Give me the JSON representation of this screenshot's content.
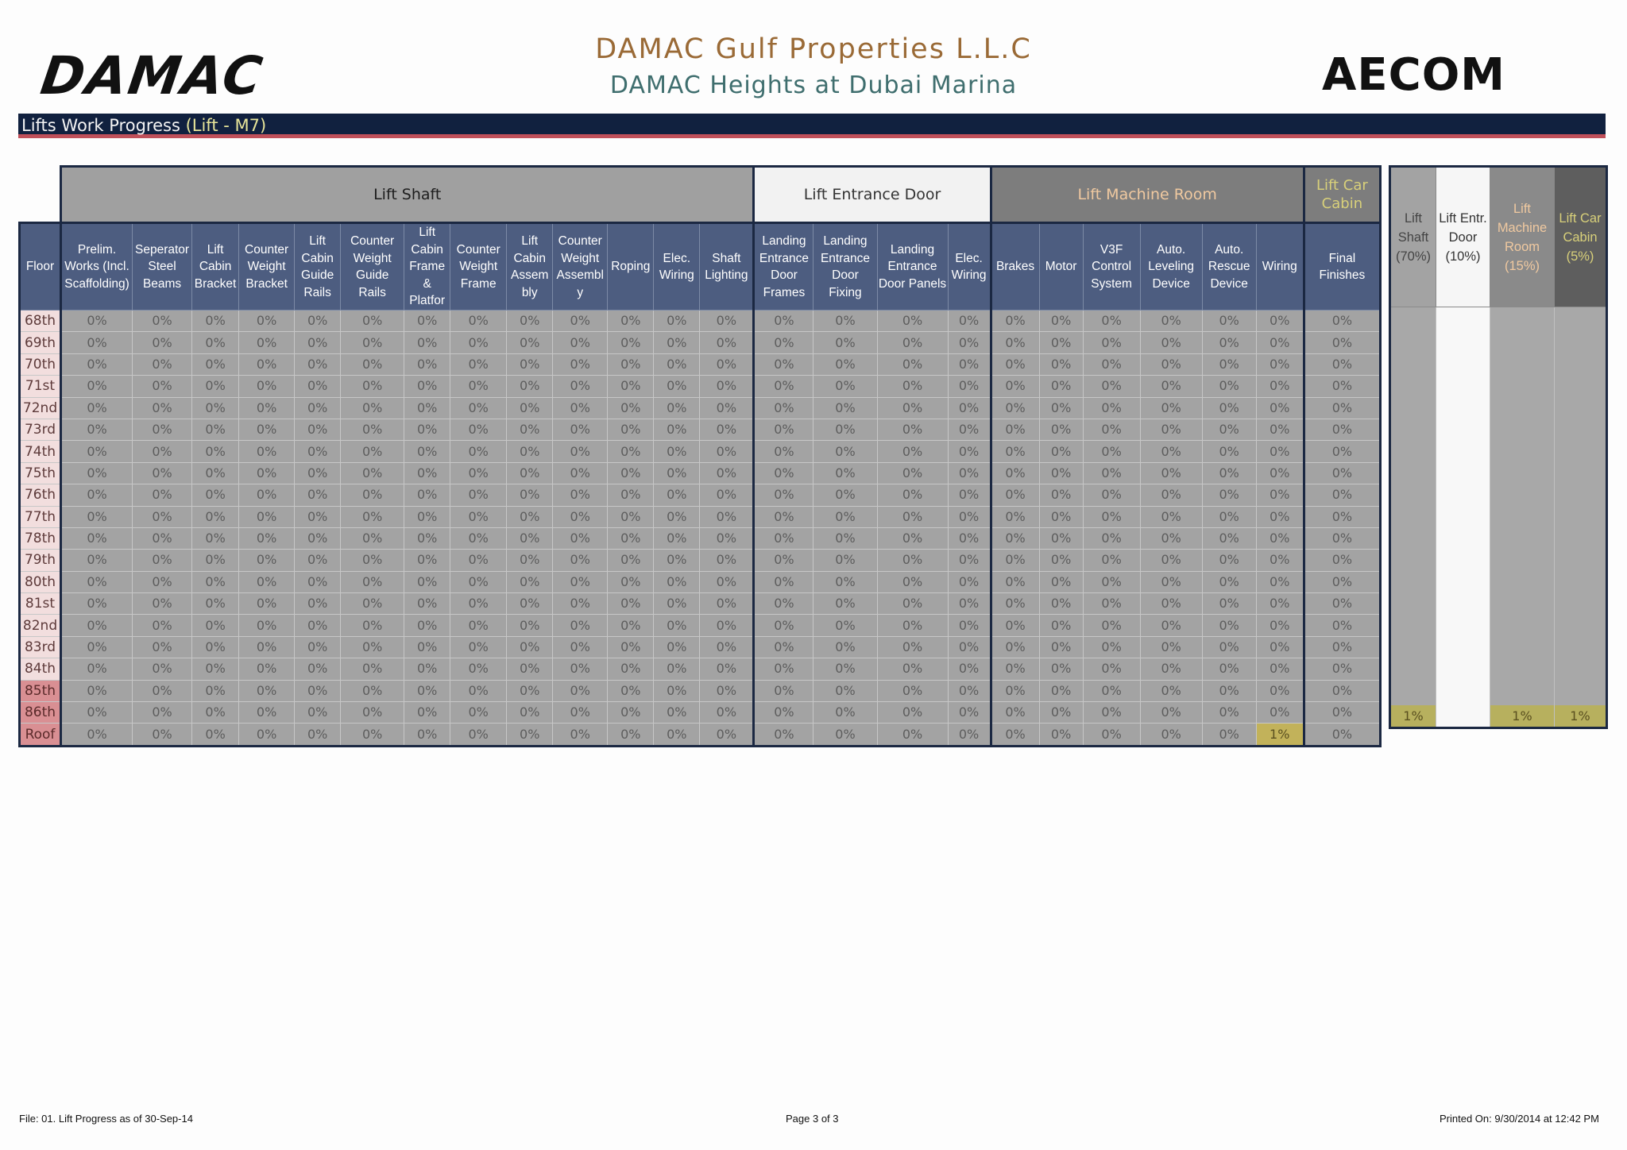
{
  "header": {
    "left_logo": "DAMAC",
    "right_logo": "AECOM",
    "company": "DAMAC Gulf Properties L.L.C",
    "project": "DAMAC Heights at Dubai Marina"
  },
  "section_bar": {
    "title": "Lifts Work Progress",
    "subtitle": "(Lift - M7)"
  },
  "groups": {
    "shaft": "Lift Shaft",
    "door": "Lift Entrance Door",
    "machine": "Lift Machine Room",
    "car": "Lift Car Cabin"
  },
  "columns": {
    "floor": "Floor",
    "list": [
      "Prelim. Works (Incl. Scaffolding)",
      "Seperator Steel Beams",
      "Lift Cabin Bracket",
      "Counter Weight Bracket",
      "Lift Cabin Guide Rails",
      "Counter Weight Guide Rails",
      "Lift Cabin Frame & Platfor",
      "Counter Weight Frame",
      "Lift Cabin Assem bly",
      "Counter Weight Assembl y",
      "Roping",
      "Elec. Wiring",
      "Shaft Lighting",
      "Landing Entrance Door Frames",
      "Landing Entrance Door Fixing",
      "Landing Entrance Door Panels",
      "Elec. Wiring",
      "Brakes",
      "Motor",
      "V3F Control System",
      "Auto. Leveling Device",
      "Auto. Rescue Device",
      "Wiring",
      "Final Finishes"
    ]
  },
  "summary_columns": [
    {
      "label": "Lift Shaft (70%)"
    },
    {
      "label": "Lift Entr. Door (10%)"
    },
    {
      "label": "Lift Machine Room (15%)"
    },
    {
      "label": "Lift Car Cabin (5%)"
    }
  ],
  "rows": [
    {
      "floor": "68th",
      "values": [
        "0%",
        "0%",
        "0%",
        "0%",
        "0%",
        "0%",
        "0%",
        "0%",
        "0%",
        "0%",
        "0%",
        "0%",
        "0%",
        "0%",
        "0%",
        "0%",
        "0%",
        "0%",
        "0%",
        "0%",
        "0%",
        "0%",
        "0%",
        "0%"
      ],
      "summary": [
        "",
        "",
        "",
        ""
      ]
    },
    {
      "floor": "69th",
      "values": [
        "0%",
        "0%",
        "0%",
        "0%",
        "0%",
        "0%",
        "0%",
        "0%",
        "0%",
        "0%",
        "0%",
        "0%",
        "0%",
        "0%",
        "0%",
        "0%",
        "0%",
        "0%",
        "0%",
        "0%",
        "0%",
        "0%",
        "0%",
        "0%"
      ],
      "summary": [
        "",
        "",
        "",
        ""
      ]
    },
    {
      "floor": "70th",
      "values": [
        "0%",
        "0%",
        "0%",
        "0%",
        "0%",
        "0%",
        "0%",
        "0%",
        "0%",
        "0%",
        "0%",
        "0%",
        "0%",
        "0%",
        "0%",
        "0%",
        "0%",
        "0%",
        "0%",
        "0%",
        "0%",
        "0%",
        "0%",
        "0%"
      ],
      "summary": [
        "",
        "",
        "",
        ""
      ]
    },
    {
      "floor": "71st",
      "values": [
        "0%",
        "0%",
        "0%",
        "0%",
        "0%",
        "0%",
        "0%",
        "0%",
        "0%",
        "0%",
        "0%",
        "0%",
        "0%",
        "0%",
        "0%",
        "0%",
        "0%",
        "0%",
        "0%",
        "0%",
        "0%",
        "0%",
        "0%",
        "0%"
      ],
      "summary": [
        "",
        "",
        "",
        ""
      ]
    },
    {
      "floor": "72nd",
      "values": [
        "0%",
        "0%",
        "0%",
        "0%",
        "0%",
        "0%",
        "0%",
        "0%",
        "0%",
        "0%",
        "0%",
        "0%",
        "0%",
        "0%",
        "0%",
        "0%",
        "0%",
        "0%",
        "0%",
        "0%",
        "0%",
        "0%",
        "0%",
        "0%"
      ],
      "summary": [
        "",
        "",
        "",
        ""
      ]
    },
    {
      "floor": "73rd",
      "values": [
        "0%",
        "0%",
        "0%",
        "0%",
        "0%",
        "0%",
        "0%",
        "0%",
        "0%",
        "0%",
        "0%",
        "0%",
        "0%",
        "0%",
        "0%",
        "0%",
        "0%",
        "0%",
        "0%",
        "0%",
        "0%",
        "0%",
        "0%",
        "0%"
      ],
      "summary": [
        "",
        "",
        "",
        ""
      ]
    },
    {
      "floor": "74th",
      "values": [
        "0%",
        "0%",
        "0%",
        "0%",
        "0%",
        "0%",
        "0%",
        "0%",
        "0%",
        "0%",
        "0%",
        "0%",
        "0%",
        "0%",
        "0%",
        "0%",
        "0%",
        "0%",
        "0%",
        "0%",
        "0%",
        "0%",
        "0%",
        "0%"
      ],
      "summary": [
        "",
        "",
        "",
        ""
      ]
    },
    {
      "floor": "75th",
      "values": [
        "0%",
        "0%",
        "0%",
        "0%",
        "0%",
        "0%",
        "0%",
        "0%",
        "0%",
        "0%",
        "0%",
        "0%",
        "0%",
        "0%",
        "0%",
        "0%",
        "0%",
        "0%",
        "0%",
        "0%",
        "0%",
        "0%",
        "0%",
        "0%"
      ],
      "summary": [
        "",
        "",
        "",
        ""
      ]
    },
    {
      "floor": "76th",
      "values": [
        "0%",
        "0%",
        "0%",
        "0%",
        "0%",
        "0%",
        "0%",
        "0%",
        "0%",
        "0%",
        "0%",
        "0%",
        "0%",
        "0%",
        "0%",
        "0%",
        "0%",
        "0%",
        "0%",
        "0%",
        "0%",
        "0%",
        "0%",
        "0%"
      ],
      "summary": [
        "",
        "",
        "",
        ""
      ]
    },
    {
      "floor": "77th",
      "values": [
        "0%",
        "0%",
        "0%",
        "0%",
        "0%",
        "0%",
        "0%",
        "0%",
        "0%",
        "0%",
        "0%",
        "0%",
        "0%",
        "0%",
        "0%",
        "0%",
        "0%",
        "0%",
        "0%",
        "0%",
        "0%",
        "0%",
        "0%",
        "0%"
      ],
      "summary": [
        "",
        "",
        "",
        ""
      ]
    },
    {
      "floor": "78th",
      "values": [
        "0%",
        "0%",
        "0%",
        "0%",
        "0%",
        "0%",
        "0%",
        "0%",
        "0%",
        "0%",
        "0%",
        "0%",
        "0%",
        "0%",
        "0%",
        "0%",
        "0%",
        "0%",
        "0%",
        "0%",
        "0%",
        "0%",
        "0%",
        "0%"
      ],
      "summary": [
        "",
        "",
        "",
        ""
      ]
    },
    {
      "floor": "79th",
      "values": [
        "0%",
        "0%",
        "0%",
        "0%",
        "0%",
        "0%",
        "0%",
        "0%",
        "0%",
        "0%",
        "0%",
        "0%",
        "0%",
        "0%",
        "0%",
        "0%",
        "0%",
        "0%",
        "0%",
        "0%",
        "0%",
        "0%",
        "0%",
        "0%"
      ],
      "summary": [
        "",
        "",
        "",
        ""
      ]
    },
    {
      "floor": "80th",
      "values": [
        "0%",
        "0%",
        "0%",
        "0%",
        "0%",
        "0%",
        "0%",
        "0%",
        "0%",
        "0%",
        "0%",
        "0%",
        "0%",
        "0%",
        "0%",
        "0%",
        "0%",
        "0%",
        "0%",
        "0%",
        "0%",
        "0%",
        "0%",
        "0%"
      ],
      "summary": [
        "",
        "",
        "",
        ""
      ]
    },
    {
      "floor": "81st",
      "values": [
        "0%",
        "0%",
        "0%",
        "0%",
        "0%",
        "0%",
        "0%",
        "0%",
        "0%",
        "0%",
        "0%",
        "0%",
        "0%",
        "0%",
        "0%",
        "0%",
        "0%",
        "0%",
        "0%",
        "0%",
        "0%",
        "0%",
        "0%",
        "0%"
      ],
      "summary": [
        "",
        "",
        "",
        ""
      ]
    },
    {
      "floor": "82nd",
      "values": [
        "0%",
        "0%",
        "0%",
        "0%",
        "0%",
        "0%",
        "0%",
        "0%",
        "0%",
        "0%",
        "0%",
        "0%",
        "0%",
        "0%",
        "0%",
        "0%",
        "0%",
        "0%",
        "0%",
        "0%",
        "0%",
        "0%",
        "0%",
        "0%"
      ],
      "summary": [
        "",
        "",
        "",
        ""
      ]
    },
    {
      "floor": "83rd",
      "values": [
        "0%",
        "0%",
        "0%",
        "0%",
        "0%",
        "0%",
        "0%",
        "0%",
        "0%",
        "0%",
        "0%",
        "0%",
        "0%",
        "0%",
        "0%",
        "0%",
        "0%",
        "0%",
        "0%",
        "0%",
        "0%",
        "0%",
        "0%",
        "0%"
      ],
      "summary": [
        "",
        "",
        "",
        ""
      ]
    },
    {
      "floor": "84th",
      "values": [
        "0%",
        "0%",
        "0%",
        "0%",
        "0%",
        "0%",
        "0%",
        "0%",
        "0%",
        "0%",
        "0%",
        "0%",
        "0%",
        "0%",
        "0%",
        "0%",
        "0%",
        "0%",
        "0%",
        "0%",
        "0%",
        "0%",
        "0%",
        "0%"
      ],
      "summary": [
        "",
        "",
        "",
        ""
      ]
    },
    {
      "floor": "85th",
      "values": [
        "0%",
        "0%",
        "0%",
        "0%",
        "0%",
        "0%",
        "0%",
        "0%",
        "0%",
        "0%",
        "0%",
        "0%",
        "0%",
        "0%",
        "0%",
        "0%",
        "0%",
        "0%",
        "0%",
        "0%",
        "0%",
        "0%",
        "0%",
        "0%"
      ],
      "summary": [
        "",
        "",
        "",
        ""
      ]
    },
    {
      "floor": "86th",
      "values": [
        "0%",
        "0%",
        "0%",
        "0%",
        "0%",
        "0%",
        "0%",
        "0%",
        "0%",
        "0%",
        "0%",
        "0%",
        "0%",
        "0%",
        "0%",
        "0%",
        "0%",
        "0%",
        "0%",
        "0%",
        "0%",
        "0%",
        "0%",
        "0%"
      ],
      "summary": [
        "",
        "",
        "",
        ""
      ]
    },
    {
      "floor": "Roof",
      "values": [
        "0%",
        "0%",
        "0%",
        "0%",
        "0%",
        "0%",
        "0%",
        "0%",
        "0%",
        "0%",
        "0%",
        "0%",
        "0%",
        "0%",
        "0%",
        "0%",
        "0%",
        "0%",
        "0%",
        "0%",
        "0%",
        "0%",
        "1%",
        "0%"
      ],
      "summary": [
        "1%",
        "",
        "1%",
        "1%"
      ]
    }
  ],
  "footer": {
    "file": "File: 01. Lift Progress as of 30-Sep-14",
    "page": "Page 3 of 3",
    "printed": "Printed On: 9/30/2014 at 12:42 PM"
  },
  "colors": {
    "bar": "#11213f",
    "header_cell": "#4d5d80",
    "highlight": "#c2b25a",
    "company_title": "#9a6a36",
    "project_title": "#3f6e6e"
  }
}
